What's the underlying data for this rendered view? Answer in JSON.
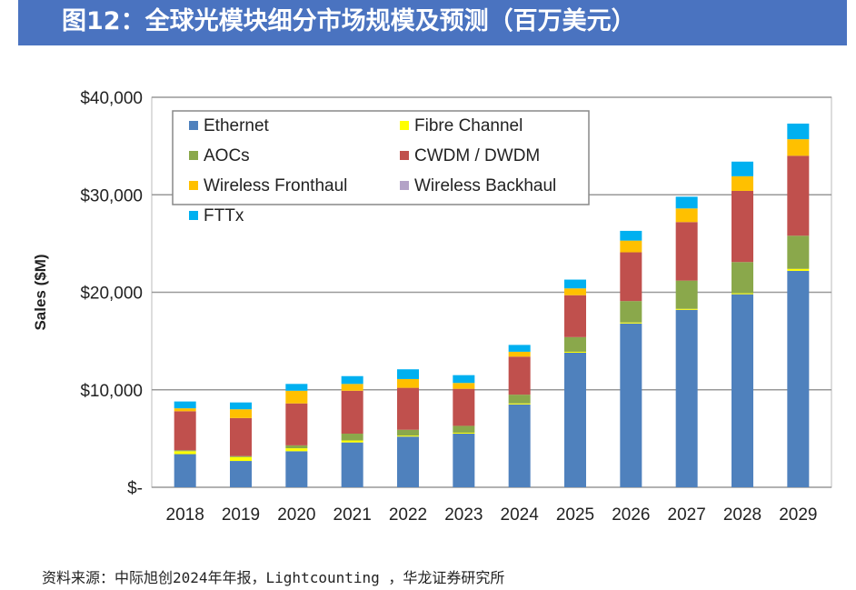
{
  "title": "图12：全球光模块细分市场规模及预测（百万美元）",
  "source": "资料来源：中际旭创2024年年报，Lightcounting ，华龙证券研究所",
  "chart_data": {
    "type": "bar",
    "stacked": true,
    "ylabel": "Sales ($M)",
    "ylim": [
      0,
      40000
    ],
    "yticks": [
      {
        "v": 0,
        "label": "$-"
      },
      {
        "v": 10000,
        "label": "$10,000"
      },
      {
        "v": 20000,
        "label": "$20,000"
      },
      {
        "v": 30000,
        "label": "$30,000"
      },
      {
        "v": 40000,
        "label": "$40,000"
      }
    ],
    "grid": true,
    "legend": "top-left",
    "categories": [
      "2018",
      "2019",
      "2020",
      "2021",
      "2022",
      "2023",
      "2024",
      "2025",
      "2026",
      "2027",
      "2028",
      "2029"
    ],
    "series": [
      {
        "name": "Ethernet",
        "color": "#4f81bd",
        "values": [
          3400,
          2700,
          3700,
          4600,
          5200,
          5500,
          8500,
          13800,
          16800,
          18200,
          19800,
          22200
        ]
      },
      {
        "name": "Fibre Channel",
        "color": "#ffff00",
        "values": [
          300,
          400,
          300,
          200,
          100,
          100,
          100,
          100,
          100,
          100,
          100,
          200
        ]
      },
      {
        "name": "AOCs",
        "color": "#8aa84b",
        "values": [
          100,
          100,
          300,
          700,
          600,
          700,
          900,
          1500,
          2200,
          2900,
          3200,
          3400
        ]
      },
      {
        "name": "CWDM / DWDM",
        "color": "#c0504d",
        "values": [
          4000,
          3900,
          4300,
          4400,
          4300,
          3800,
          3900,
          4300,
          5000,
          6000,
          7300,
          8200
        ]
      },
      {
        "name": "Wireless Fronthaul",
        "color": "#ffc000",
        "values": [
          300,
          900,
          1300,
          700,
          900,
          600,
          500,
          700,
          1200,
          1400,
          1500,
          1700
        ]
      },
      {
        "name": "Wireless Backhaul",
        "color": "#b3a2c7",
        "values": [
          0,
          0,
          0,
          0,
          0,
          0,
          0,
          0,
          0,
          0,
          0,
          0
        ]
      },
      {
        "name": "FTTx",
        "color": "#00b0f0",
        "values": [
          700,
          700,
          700,
          800,
          1000,
          800,
          700,
          900,
          1000,
          1200,
          1500,
          1600
        ]
      }
    ]
  }
}
